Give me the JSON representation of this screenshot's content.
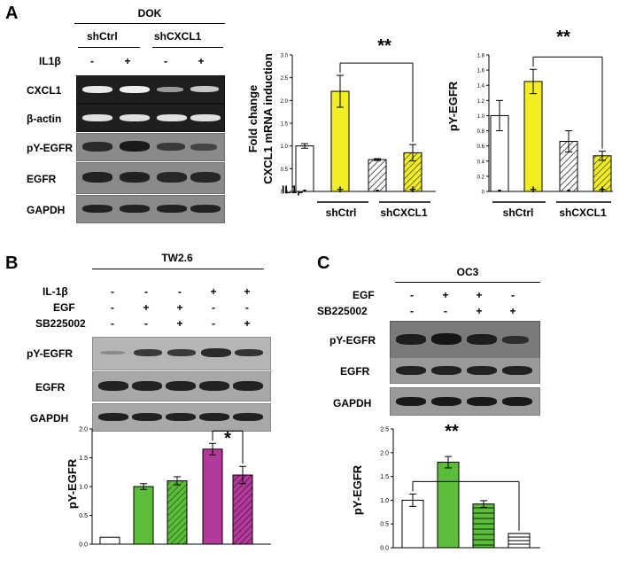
{
  "panel_labels": {
    "a": "A",
    "b": "B",
    "c": "C"
  },
  "panelA": {
    "cell_line": "DOK",
    "groups": [
      "shCtrl",
      "shCXCL1"
    ],
    "treatment_label": "IL1β",
    "treatment_marks": [
      "-",
      "+",
      "-",
      "+"
    ],
    "rows": [
      "CXCL1",
      "β-actin",
      "pY-EGFR",
      "EGFR",
      "GAPDH"
    ]
  },
  "panelB": {
    "cell_line": "TW2.6",
    "conditions": [
      {
        "label": "IL-1β",
        "marks": [
          "-",
          "-",
          "-",
          "+",
          "+"
        ]
      },
      {
        "label": "EGF",
        "marks": [
          "-",
          "+",
          "+",
          "-",
          "-"
        ]
      },
      {
        "label": "SB225002",
        "marks": [
          "-",
          "-",
          "+",
          "-",
          "+"
        ]
      }
    ],
    "rows": [
      "pY-EGFR",
      "EGFR",
      "GAPDH"
    ]
  },
  "panelC": {
    "cell_line": "OC3",
    "conditions": [
      {
        "label": "EGF",
        "marks": [
          "-",
          "+",
          "+",
          "-"
        ]
      },
      {
        "label": "SB225002",
        "marks": [
          "-",
          "-",
          "+",
          "+"
        ]
      }
    ],
    "rows": [
      "pY-EGFR",
      "EGFR",
      "GAPDH"
    ]
  },
  "chart_data": [
    {
      "id": "A1",
      "type": "bar",
      "ylabel": "Fold change",
      "ylabel2": "CXCL1 mRNA induction",
      "ylim": [
        0,
        3.0
      ],
      "yticks": [
        "0.0",
        "0.5",
        "1.0",
        "1.5",
        "2.0",
        "2.5",
        "3.0"
      ],
      "values": [
        1.0,
        2.2,
        0.7,
        0.85
      ],
      "errors": [
        0.05,
        0.35,
        0.02,
        0.18
      ],
      "fills": [
        "#ffffff",
        "#f2ee22",
        "hatch-gray",
        "hatch-yellow"
      ],
      "treatment_label": "IL1β",
      "marks": [
        "-",
        "+",
        "-",
        "+"
      ],
      "groups": [
        "shCtrl",
        "shCXCL1"
      ],
      "significance": {
        "from": 1,
        "to": 3,
        "label": "**"
      }
    },
    {
      "id": "A2",
      "type": "bar",
      "ylabel": "pY-EGFR",
      "ylim": [
        0,
        1.8
      ],
      "yticks": [
        "0",
        "0.2",
        "0.4",
        "0.6",
        "0.8",
        "1.0",
        "1.2",
        "1.4",
        "1.6",
        "1.8"
      ],
      "values": [
        1.0,
        1.45,
        0.66,
        0.47
      ],
      "errors": [
        0.2,
        0.16,
        0.14,
        0.06
      ],
      "fills": [
        "#ffffff",
        "#f2ee22",
        "hatch-gray",
        "hatch-yellow"
      ],
      "marks": [
        "-",
        "+",
        "-",
        "+"
      ],
      "groups": [
        "shCtrl",
        "shCXCL1"
      ],
      "significance": {
        "from": 1,
        "to": 3,
        "label": "**"
      }
    },
    {
      "id": "B",
      "type": "bar",
      "ylabel": "pY-EGFR",
      "ylim": [
        0,
        2.0
      ],
      "yticks": [
        "0.0",
        "0.5",
        "1.0",
        "1.5",
        "2.0"
      ],
      "values": [
        0.12,
        1.0,
        1.1,
        1.65,
        1.2
      ],
      "errors": [
        0.0,
        0.05,
        0.07,
        0.1,
        0.15
      ],
      "fills": [
        "#ffffff",
        "#5bbd3a",
        "hatch-green",
        "#b23a9a",
        "hatch-magenta"
      ],
      "significance": {
        "from": 3,
        "to": 4,
        "label": "*"
      }
    },
    {
      "id": "C",
      "type": "bar",
      "ylabel": "pY-EGFR",
      "ylim": [
        0,
        2.5
      ],
      "yticks": [
        "0.0",
        "0.5",
        "1.0",
        "1.5",
        "2.0",
        "2.5"
      ],
      "values": [
        1.0,
        1.8,
        0.92,
        0.3
      ],
      "errors": [
        0.13,
        0.12,
        0.07,
        0.0
      ],
      "fills": [
        "#ffffff",
        "#5bbd3a",
        "hstripe-green",
        "hstripe-white"
      ],
      "significance": {
        "from": 0,
        "to": 3,
        "label": "**"
      }
    }
  ]
}
